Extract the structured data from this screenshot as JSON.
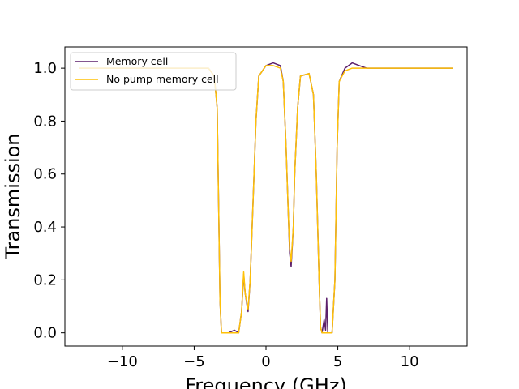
{
  "chart_data": {
    "type": "line",
    "xlabel": "Frequency (GHz)",
    "ylabel": "Transmission",
    "xlim": [
      -14,
      14
    ],
    "ylim": [
      -0.05,
      1.08
    ],
    "xticks": [
      -10,
      -5,
      0,
      5,
      10
    ],
    "xtick_labels": [
      "−10",
      "−5",
      "0",
      "5",
      "10"
    ],
    "yticks": [
      0.0,
      0.2,
      0.4,
      0.6,
      0.8,
      1.0
    ],
    "ytick_labels": [
      "0.0",
      "0.2",
      "0.4",
      "0.6",
      "0.8",
      "1.0"
    ],
    "grid": false,
    "legend_position": "upper-left",
    "series": [
      {
        "name": "Memory cell",
        "color": "#5c1f6b",
        "points": [
          [
            -13,
            1.0
          ],
          [
            -12,
            1.0
          ],
          [
            -11,
            1.0
          ],
          [
            -10,
            1.0
          ],
          [
            -9,
            1.0
          ],
          [
            -8,
            1.0
          ],
          [
            -7,
            1.0
          ],
          [
            -6,
            1.0
          ],
          [
            -5,
            1.0
          ],
          [
            -4,
            1.0
          ],
          [
            -3.6,
            0.97
          ],
          [
            -3.4,
            0.85
          ],
          [
            -3.3,
            0.5
          ],
          [
            -3.2,
            0.12
          ],
          [
            -3.1,
            0.0
          ],
          [
            -2.6,
            0.0
          ],
          [
            -2.2,
            0.01
          ],
          [
            -1.9,
            0.0
          ],
          [
            -1.7,
            0.08
          ],
          [
            -1.55,
            0.22
          ],
          [
            -1.45,
            0.15
          ],
          [
            -1.25,
            0.08
          ],
          [
            -1.1,
            0.2
          ],
          [
            -0.9,
            0.5
          ],
          [
            -0.7,
            0.8
          ],
          [
            -0.5,
            0.97
          ],
          [
            0.0,
            1.01
          ],
          [
            0.5,
            1.02
          ],
          [
            1.0,
            1.01
          ],
          [
            1.2,
            0.95
          ],
          [
            1.4,
            0.7
          ],
          [
            1.55,
            0.45
          ],
          [
            1.65,
            0.3
          ],
          [
            1.75,
            0.25
          ],
          [
            1.9,
            0.4
          ],
          [
            2.0,
            0.6
          ],
          [
            2.2,
            0.85
          ],
          [
            2.4,
            0.97
          ],
          [
            3.0,
            0.98
          ],
          [
            3.3,
            0.9
          ],
          [
            3.5,
            0.6
          ],
          [
            3.7,
            0.2
          ],
          [
            3.8,
            0.02
          ],
          [
            3.9,
            0.0
          ],
          [
            4.05,
            0.05
          ],
          [
            4.15,
            0.01
          ],
          [
            4.22,
            0.13
          ],
          [
            4.3,
            0.0
          ],
          [
            4.6,
            0.0
          ],
          [
            4.8,
            0.2
          ],
          [
            4.95,
            0.7
          ],
          [
            5.1,
            0.95
          ],
          [
            5.5,
            1.0
          ],
          [
            6,
            1.02
          ],
          [
            6.5,
            1.01
          ],
          [
            7,
            1.0
          ],
          [
            8,
            1.0
          ],
          [
            9,
            1.0
          ],
          [
            10,
            1.0
          ],
          [
            11,
            1.0
          ],
          [
            12,
            1.0
          ],
          [
            13,
            1.0
          ]
        ]
      },
      {
        "name": "No pump memory cell",
        "color": "#ffc107",
        "points": [
          [
            -13,
            1.0
          ],
          [
            -12,
            1.0
          ],
          [
            -11,
            1.0
          ],
          [
            -10,
            1.0
          ],
          [
            -9,
            1.0
          ],
          [
            -8,
            1.0
          ],
          [
            -7,
            1.0
          ],
          [
            -6,
            1.0
          ],
          [
            -5,
            1.0
          ],
          [
            -4,
            1.0
          ],
          [
            -3.6,
            0.97
          ],
          [
            -3.4,
            0.85
          ],
          [
            -3.3,
            0.5
          ],
          [
            -3.2,
            0.12
          ],
          [
            -3.1,
            0.0
          ],
          [
            -2.6,
            0.0
          ],
          [
            -2.2,
            0.0
          ],
          [
            -1.9,
            0.0
          ],
          [
            -1.7,
            0.08
          ],
          [
            -1.55,
            0.23
          ],
          [
            -1.45,
            0.15
          ],
          [
            -1.25,
            0.09
          ],
          [
            -1.1,
            0.2
          ],
          [
            -0.9,
            0.5
          ],
          [
            -0.7,
            0.8
          ],
          [
            -0.5,
            0.97
          ],
          [
            0.0,
            1.01
          ],
          [
            0.5,
            1.01
          ],
          [
            1.0,
            1.0
          ],
          [
            1.2,
            0.95
          ],
          [
            1.4,
            0.7
          ],
          [
            1.55,
            0.45
          ],
          [
            1.65,
            0.32
          ],
          [
            1.75,
            0.27
          ],
          [
            1.9,
            0.4
          ],
          [
            2.0,
            0.6
          ],
          [
            2.2,
            0.85
          ],
          [
            2.4,
            0.97
          ],
          [
            3.0,
            0.98
          ],
          [
            3.3,
            0.9
          ],
          [
            3.5,
            0.6
          ],
          [
            3.7,
            0.2
          ],
          [
            3.8,
            0.02
          ],
          [
            3.9,
            0.0
          ],
          [
            4.6,
            0.0
          ],
          [
            4.8,
            0.2
          ],
          [
            4.95,
            0.7
          ],
          [
            5.1,
            0.95
          ],
          [
            5.5,
            0.99
          ],
          [
            6,
            1.0
          ],
          [
            6.5,
            1.0
          ],
          [
            7,
            1.0
          ],
          [
            8,
            1.0
          ],
          [
            9,
            1.0
          ],
          [
            10,
            1.0
          ],
          [
            11,
            1.0
          ],
          [
            12,
            1.0
          ],
          [
            13,
            1.0
          ]
        ]
      }
    ]
  }
}
